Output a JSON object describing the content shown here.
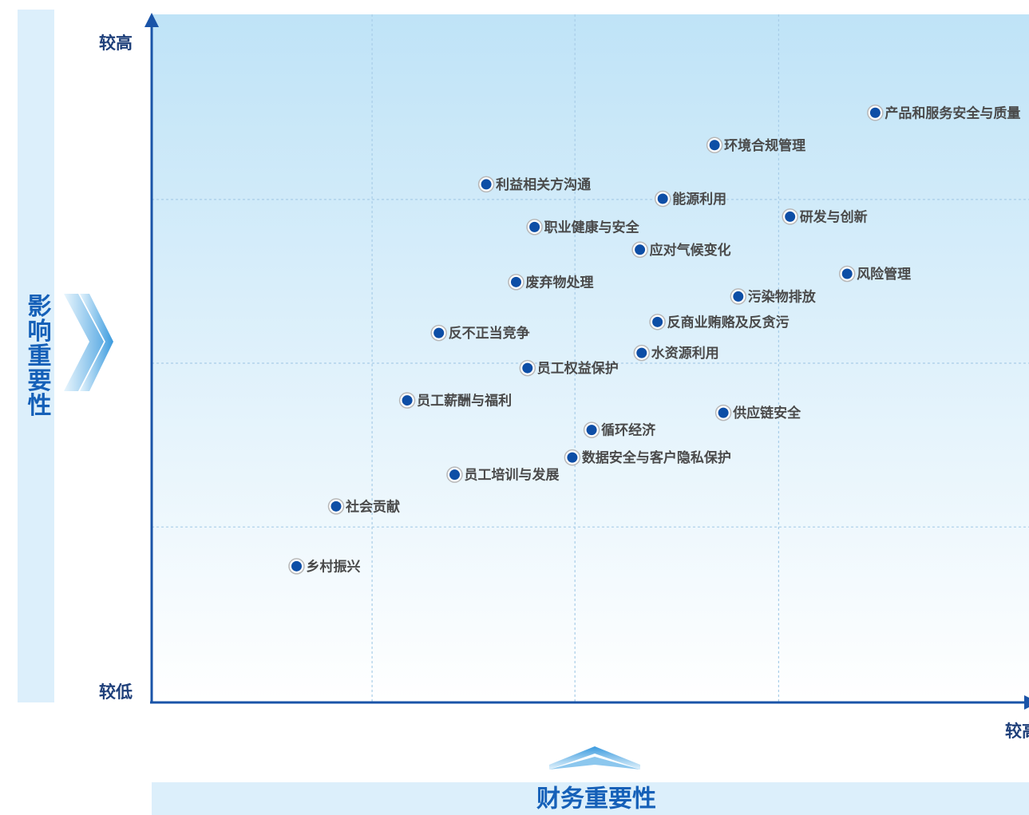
{
  "chart_data": {
    "type": "scatter",
    "x_axis_label": "财务重要性",
    "y_axis_label": "影响重要性",
    "y_high_label": "较高",
    "y_low_label": "较低",
    "x_high_label": "较高",
    "color": "#0d4ea6",
    "grid": true,
    "xlim": [
      0,
      100
    ],
    "ylim": [
      0,
      100
    ],
    "xticks": [
      25.1,
      48.2,
      71.4
    ],
    "yticks": [
      25.5,
      49.3,
      73.1
    ],
    "categories": [
      "产品和服务安全与质量",
      "环境合规管理",
      "利益相关方沟通",
      "能源利用",
      "研发与创新",
      "职业健康与安全",
      "应对气候变化",
      "风险管理",
      "废弃物处理",
      "污染物排放",
      "反商业贿赂及反贪污",
      "反不正当竞争",
      "水资源利用",
      "员工权益保护",
      "员工薪酬与福利",
      "供应链安全",
      "循环经济",
      "数据安全与客户隐私保护",
      "员工培训与发展",
      "社会贡献",
      "乡村振兴"
    ],
    "x": [
      82.4,
      64.1,
      38.1,
      58.2,
      72.7,
      43.6,
      55.6,
      79.2,
      41.5,
      66.8,
      57.6,
      32.7,
      55.8,
      42.8,
      29.1,
      65.1,
      50.1,
      47.9,
      34.5,
      21.0,
      16.5
    ],
    "values": [
      85.7,
      81.0,
      75.3,
      73.2,
      70.6,
      69.1,
      65.8,
      62.3,
      61.1,
      59.0,
      55.3,
      53.7,
      50.8,
      48.6,
      43.9,
      42.1,
      39.6,
      35.6,
      33.1,
      28.5,
      19.8
    ]
  }
}
